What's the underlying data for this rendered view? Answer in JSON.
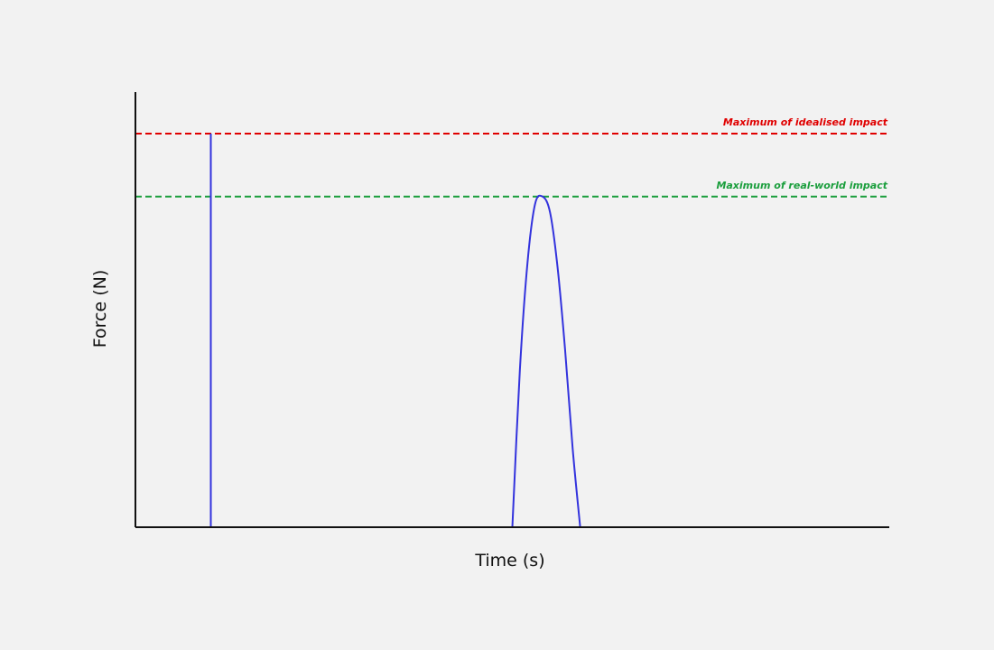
{
  "chart_data": {
    "type": "line",
    "xlabel": "Time (s)",
    "ylabel": "Force (N)",
    "grid": false,
    "axis_ticks": false,
    "xlim": [
      0,
      100
    ],
    "ylim": [
      0,
      100
    ],
    "series": [
      {
        "kind": "impulse",
        "color": "#3333dd",
        "x": [
          10,
          10
        ],
        "y": [
          0,
          100
        ]
      },
      {
        "kind": "curve",
        "color": "#3333dd",
        "x": [
          50,
          51,
          52,
          53,
          54,
          55,
          56,
          57,
          58,
          59
        ],
        "y": [
          0,
          40,
          67,
          82,
          84,
          80,
          66,
          45,
          20,
          0
        ]
      }
    ],
    "reference_lines": [
      {
        "label": "Maximum of idealised impact",
        "y": 100,
        "color": "#e00000",
        "style": "dashed"
      },
      {
        "label": "Maximum of real-world impact",
        "y": 84,
        "color": "#1a9e3c",
        "style": "dashed"
      }
    ]
  },
  "colors": {
    "background": "#f2f2f2",
    "axis": "#111111"
  }
}
